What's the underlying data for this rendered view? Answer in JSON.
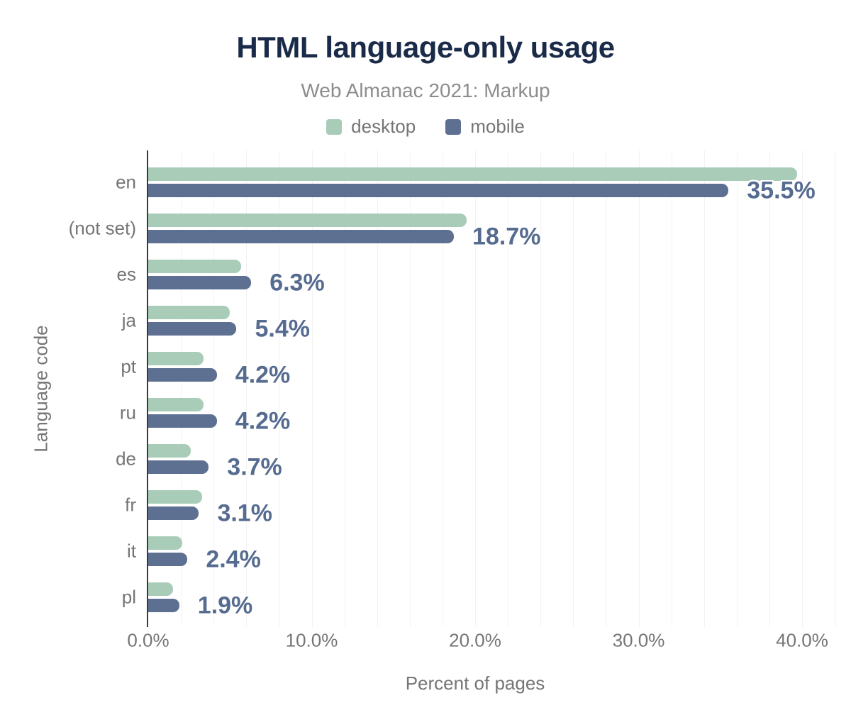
{
  "chart_data": {
    "type": "bar",
    "orientation": "horizontal",
    "title": "HTML language-only usage",
    "subtitle": "Web Almanac 2021: Markup",
    "xlabel": "Percent of pages",
    "ylabel": "Language code",
    "categories": [
      "en",
      "(not set)",
      "es",
      "ja",
      "pt",
      "ru",
      "de",
      "fr",
      "it",
      "pl"
    ],
    "series": [
      {
        "name": "desktop",
        "color": "#a9ccb9",
        "values": [
          39.7,
          19.5,
          5.7,
          5.0,
          3.4,
          3.4,
          2.6,
          3.3,
          2.1,
          1.5
        ]
      },
      {
        "name": "mobile",
        "color": "#5d7091",
        "values": [
          35.5,
          18.7,
          6.3,
          5.4,
          4.2,
          4.2,
          3.7,
          3.1,
          2.4,
          1.9
        ]
      }
    ],
    "value_labels": [
      "35.5%",
      "18.7%",
      "6.3%",
      "5.4%",
      "4.2%",
      "4.2%",
      "3.7%",
      "3.1%",
      "2.4%",
      "1.9%"
    ],
    "value_label_series": "mobile",
    "xlim": [
      0,
      40
    ],
    "x_ticks": [
      "0.0%",
      "10.0%",
      "20.0%",
      "30.0%",
      "40.0%"
    ],
    "x_tick_values": [
      0,
      10,
      20,
      30,
      40
    ],
    "grid": {
      "minor_step_pct": 2,
      "color": "#f2f2f2",
      "vertical": true
    },
    "legend_position": "top"
  },
  "colors": {
    "title": "#1a2b49",
    "subtitle": "#8d8d8d",
    "axis_text": "#757575",
    "value_label": "#566b90",
    "axis_line": "#3b3b3b",
    "gridline": "#f2f2f2",
    "background": "#ffffff"
  }
}
